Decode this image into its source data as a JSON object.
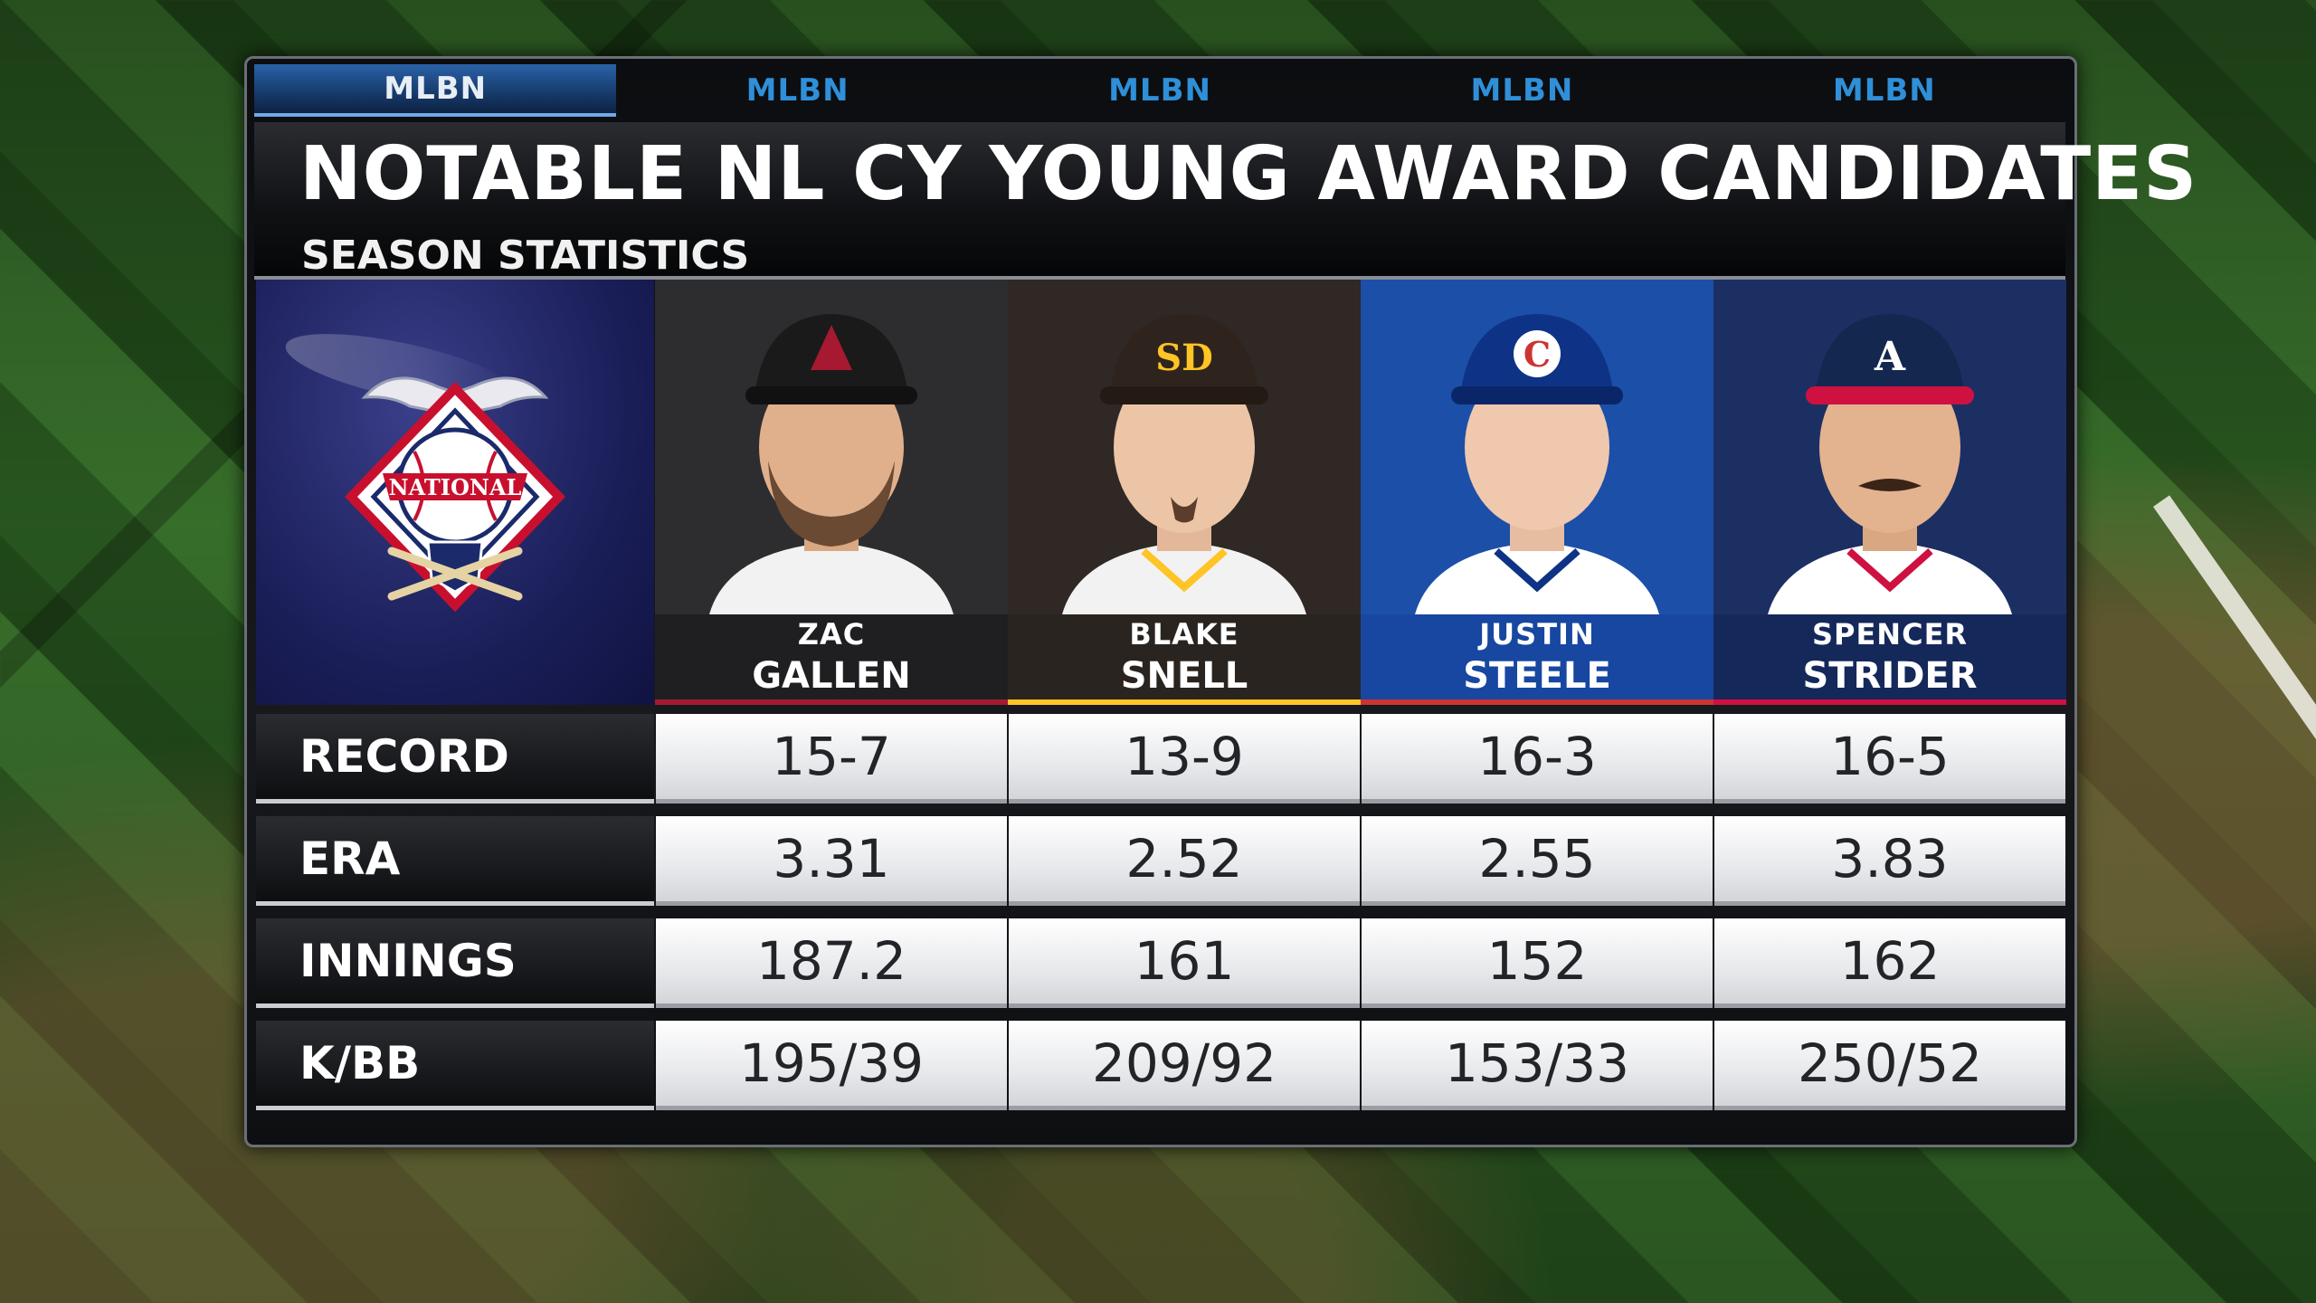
{
  "network": {
    "tabs": [
      "MLBN",
      "MLBN",
      "MLBN",
      "MLBN",
      "MLBN"
    ]
  },
  "header": {
    "title": "NOTABLE NL CY YOUNG AWARD CANDIDATES",
    "subtitle": "SEASON STATISTICS"
  },
  "league_logo": {
    "icon": "national-league-logo-icon",
    "text": "NATIONAL"
  },
  "players": [
    {
      "first": "ZAC",
      "last": "GALLEN",
      "team_icon": "diamondbacks-cap-icon",
      "photo_bg": "#2d2d30",
      "cap_color": "#1a1a1a",
      "jersey_color": "#f2f2f2",
      "name_box_color": "#1f1f22",
      "strip_color": "#a71930"
    },
    {
      "first": "BLAKE",
      "last": "SNELL",
      "team_icon": "padres-cap-icon",
      "photo_bg": "#2f2824",
      "cap_color": "#2f241d",
      "jersey_color": "#f2f2f2",
      "name_box_color": "#2a2420",
      "strip_color": "#ffc425"
    },
    {
      "first": "JUSTIN",
      "last": "STEELE",
      "team_icon": "cubs-cap-icon",
      "photo_bg": "#1c4fa8",
      "cap_color": "#0e3386",
      "jersey_color": "#ffffff",
      "name_box_color": "#1747a0",
      "strip_color": "#cc3433"
    },
    {
      "first": "SPENCER",
      "last": "STRIDER",
      "team_icon": "braves-cap-icon",
      "photo_bg": "#1c2f63",
      "cap_color": "#13274f",
      "jersey_color": "#ffffff",
      "name_box_color": "#14285a",
      "strip_color": "#ce1141"
    }
  ],
  "stats": [
    {
      "label": "RECORD",
      "values": [
        "15-7",
        "13-9",
        "16-3",
        "16-5"
      ]
    },
    {
      "label": "ERA",
      "values": [
        "3.31",
        "2.52",
        "2.55",
        "3.83"
      ]
    },
    {
      "label": "INNINGS",
      "values": [
        "187.2",
        "161",
        "152",
        "162"
      ]
    },
    {
      "label": "K/BB",
      "values": [
        "195/39",
        "209/92",
        "153/33",
        "250/52"
      ]
    }
  ]
}
